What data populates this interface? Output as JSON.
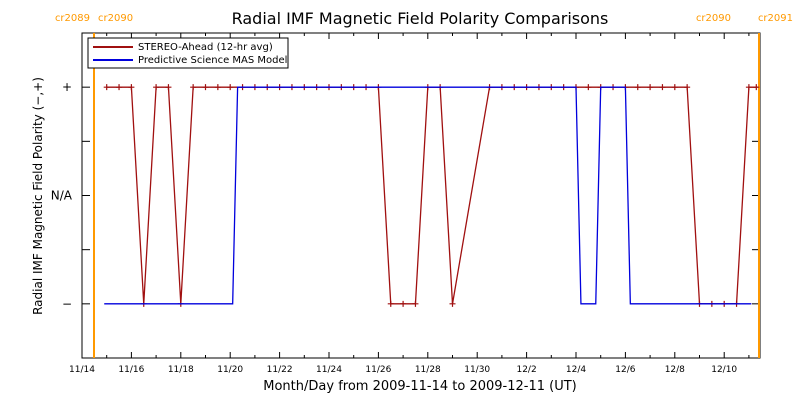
{
  "chart_data": {
    "type": "line",
    "title": "Radial IMF Magnetic Field Polarity Comparisons",
    "xlabel": "Month/Day from 2009-11-14 to 2009-12-11 (UT)",
    "ylabel": "Radial IMF Magnetic Field Polarity (−,+)",
    "xlim": [
      0,
      27.1
    ],
    "ylim": [
      -1.5,
      1.5
    ],
    "x_ticks": [
      {
        "x": 0,
        "label": "11/14"
      },
      {
        "x": 2,
        "label": "11/16"
      },
      {
        "x": 4,
        "label": "11/18"
      },
      {
        "x": 6,
        "label": "11/20"
      },
      {
        "x": 8,
        "label": "11/22"
      },
      {
        "x": 10,
        "label": "11/24"
      },
      {
        "x": 12,
        "label": "11/26"
      },
      {
        "x": 14,
        "label": "11/28"
      },
      {
        "x": 16,
        "label": "11/30"
      },
      {
        "x": 18,
        "label": "12/2"
      },
      {
        "x": 20,
        "label": "12/4"
      },
      {
        "x": 22,
        "label": "12/6"
      },
      {
        "x": 24,
        "label": "12/8"
      },
      {
        "x": 26,
        "label": "12/10"
      }
    ],
    "y_ticks": [
      {
        "y": 1,
        "label": "+"
      },
      {
        "y": 0,
        "label": "N/A"
      },
      {
        "y": -1,
        "label": "−"
      }
    ],
    "carrington_markers": [
      {
        "x": 0.9,
        "left_label": "cr2089",
        "right_label": "cr2090",
        "color": "#ff9900"
      },
      {
        "x": 27.1,
        "left_label": "cr2090",
        "right_label": "cr2091",
        "color": "#ff9900"
      }
    ],
    "legend_position": "top-left",
    "series": [
      {
        "name": "STEREO-Ahead (12-hr avg)",
        "color": "#a01010",
        "markers": "plus",
        "points": [
          [
            1.0,
            1
          ],
          [
            1.5,
            1
          ],
          [
            2.0,
            1
          ],
          [
            2.5,
            -1
          ],
          [
            3.0,
            1
          ],
          [
            3.5,
            1
          ],
          [
            4.0,
            -1
          ],
          [
            4.5,
            1
          ],
          [
            5.0,
            1
          ],
          [
            5.5,
            1
          ],
          [
            6.0,
            1
          ],
          [
            6.5,
            1
          ],
          [
            7.0,
            1
          ],
          [
            7.5,
            1
          ],
          [
            8.0,
            1
          ],
          [
            8.5,
            1
          ],
          [
            9.0,
            1
          ],
          [
            9.5,
            1
          ],
          [
            10.0,
            1
          ],
          [
            10.5,
            1
          ],
          [
            11.0,
            1
          ],
          [
            11.5,
            1
          ],
          [
            12.0,
            1
          ],
          [
            12.5,
            -1
          ],
          [
            13.0,
            -1
          ],
          [
            13.5,
            -1
          ],
          [
            14.0,
            1
          ],
          [
            14.5,
            1
          ],
          [
            15.0,
            -1
          ],
          [
            16.5,
            1
          ],
          [
            17.0,
            1
          ],
          [
            17.5,
            1
          ],
          [
            18.0,
            1
          ],
          [
            18.5,
            1
          ],
          [
            19.0,
            1
          ],
          [
            19.5,
            1
          ],
          [
            20.0,
            1
          ],
          [
            20.5,
            1
          ],
          [
            21.0,
            1
          ],
          [
            21.5,
            1
          ],
          [
            22.0,
            1
          ],
          [
            22.5,
            1
          ],
          [
            23.0,
            1
          ],
          [
            23.5,
            1
          ],
          [
            24.0,
            1
          ],
          [
            24.5,
            1
          ],
          [
            25.0,
            -1
          ],
          [
            25.5,
            -1
          ],
          [
            26.0,
            -1
          ],
          [
            26.5,
            -1
          ],
          [
            27.0,
            1
          ],
          [
            27.3,
            1
          ]
        ]
      },
      {
        "name": "Predictive Science MAS Model",
        "color": "#0000dd",
        "markers": "none",
        "points": [
          [
            0.9,
            -1
          ],
          [
            6.1,
            -1
          ],
          [
            6.3,
            1
          ],
          [
            20.0,
            1
          ],
          [
            20.2,
            -1
          ],
          [
            20.8,
            -1
          ],
          [
            21.0,
            1
          ],
          [
            22.0,
            1
          ],
          [
            22.2,
            -1
          ],
          [
            27.1,
            -1
          ]
        ]
      }
    ]
  }
}
